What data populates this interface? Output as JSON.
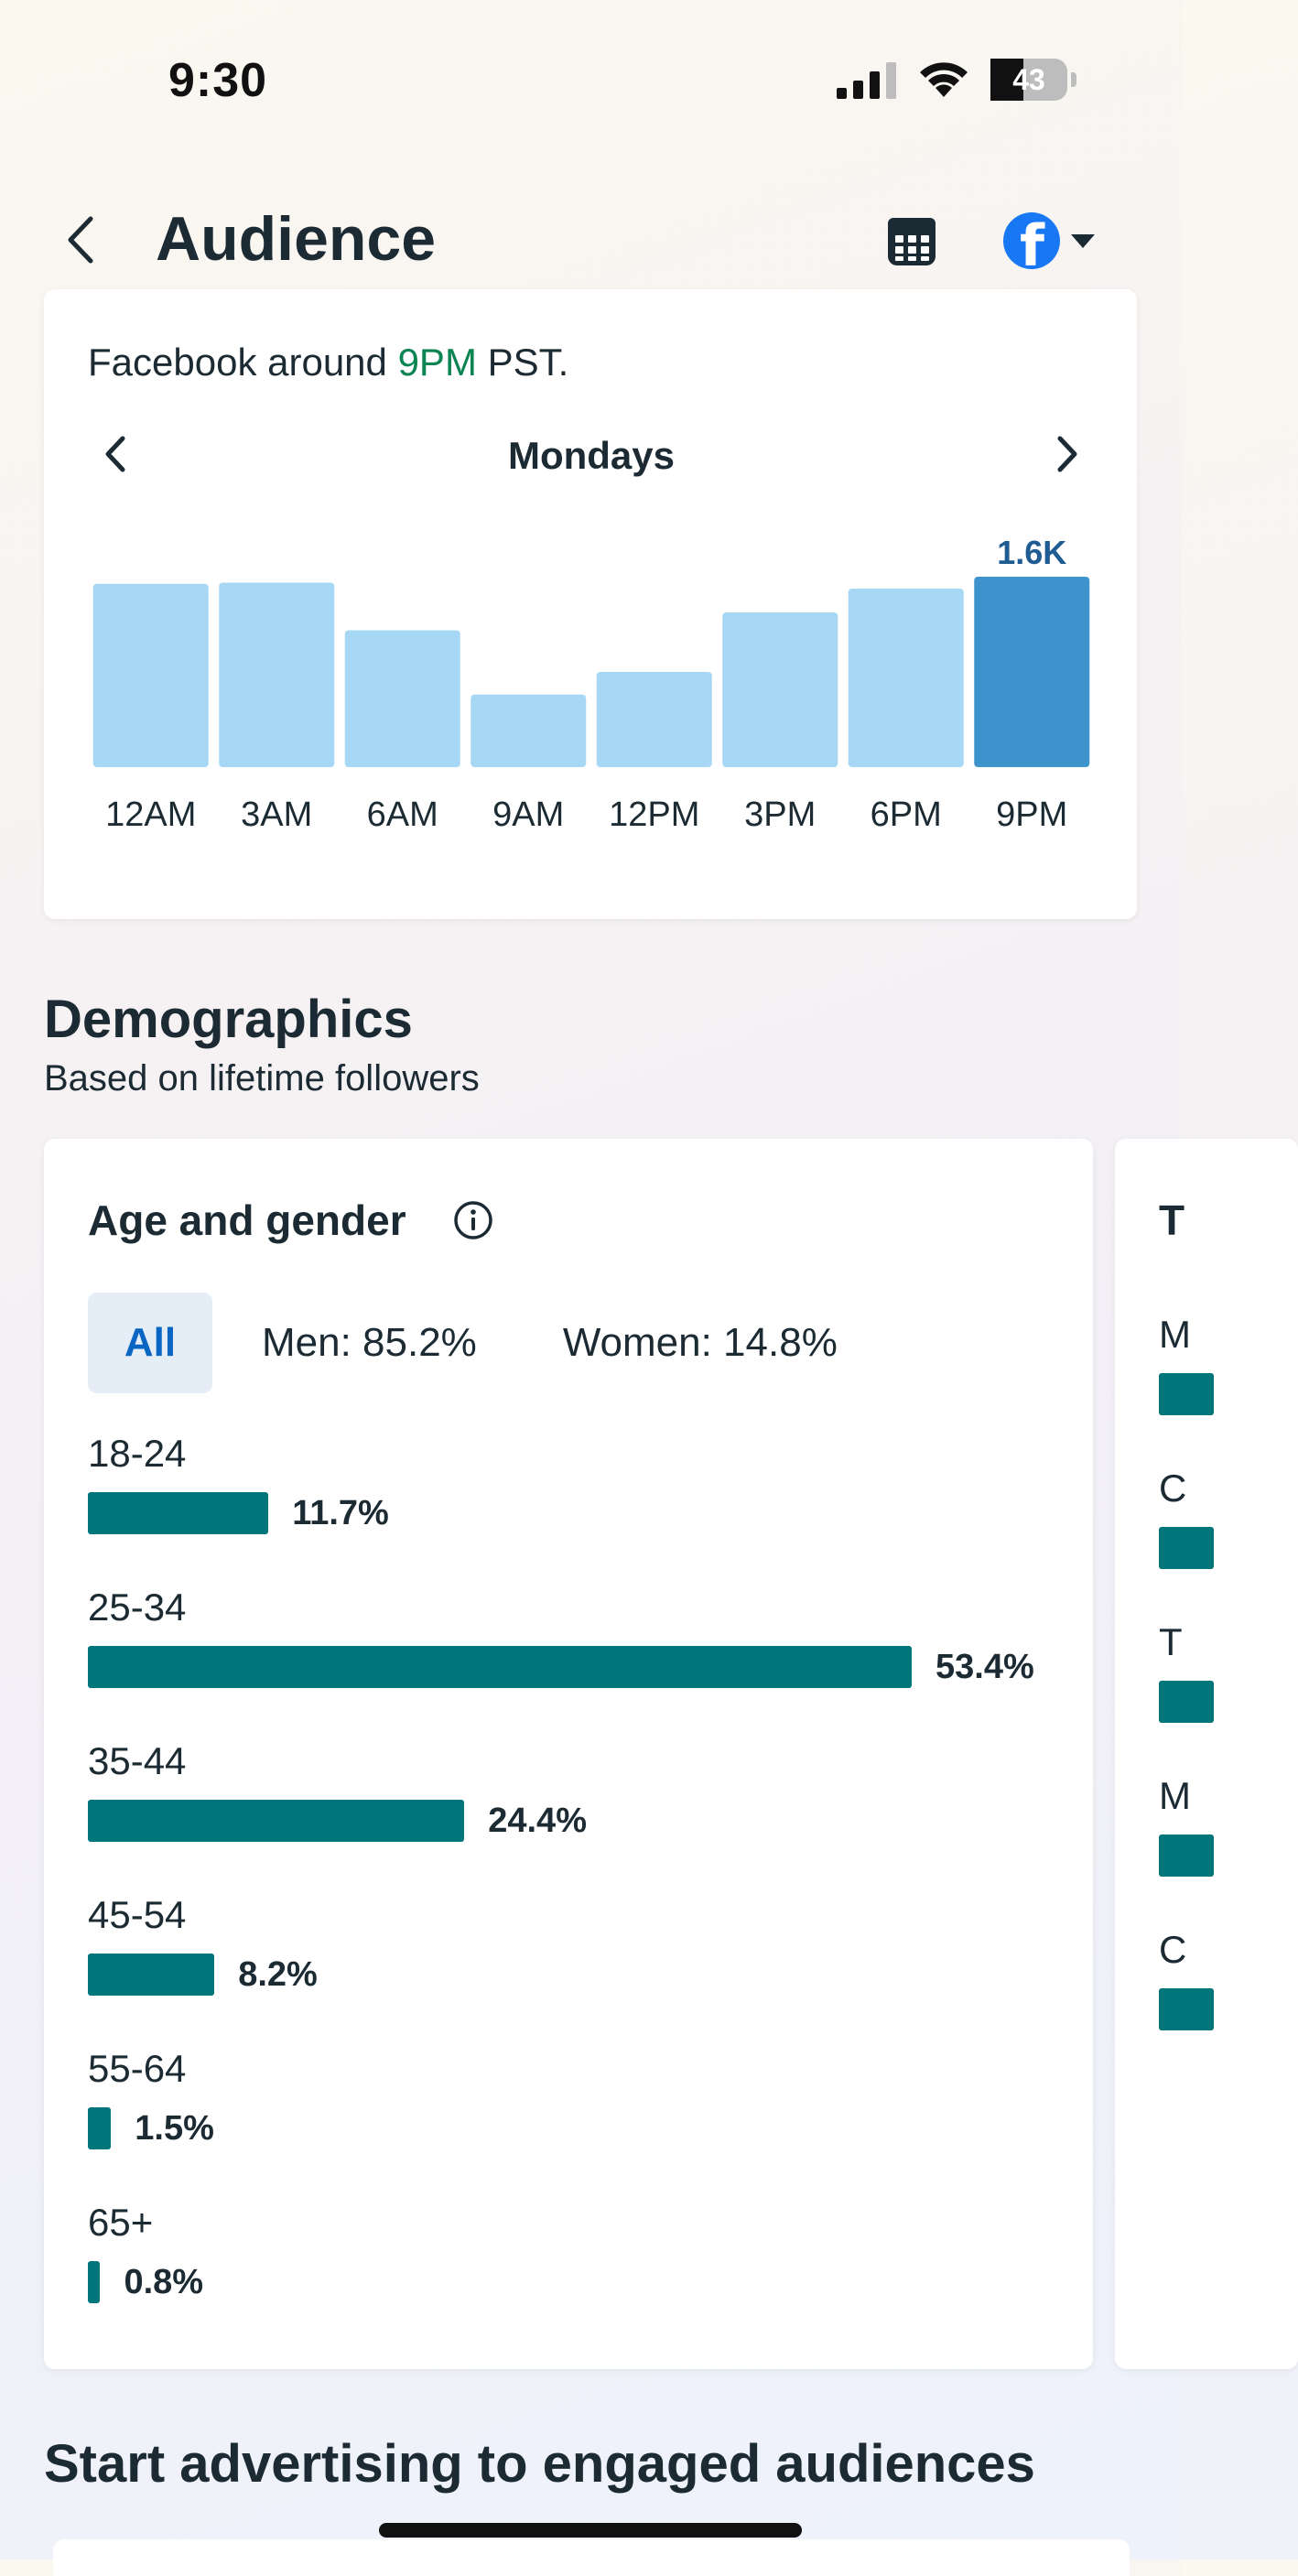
{
  "status_bar": {
    "time": "9:30",
    "battery": "43",
    "battery_level": 0.43
  },
  "header": {
    "title": "Audience",
    "calendar_icon": "calendar-icon",
    "account_icon": "facebook-logo"
  },
  "activity": {
    "text_prefix": "Facebook around ",
    "text_highlight": "9PM",
    "text_suffix": " PST.",
    "day": "Mondays",
    "highlight_color": "#0a8450"
  },
  "chart_data": {
    "type": "bar",
    "categories": [
      "12AM",
      "3AM",
      "6AM",
      "9AM",
      "12PM",
      "3PM",
      "6PM",
      "9PM"
    ],
    "values": [
      1.54,
      1.55,
      1.15,
      0.61,
      0.8,
      1.3,
      1.5,
      1.6
    ],
    "unit": "K",
    "data_labels": [
      {
        "index": 7,
        "text": "1.6K"
      }
    ],
    "highlight_index": 7,
    "colors": {
      "bar": "#a6d8f5",
      "highlight": "#3d94cc",
      "label": "#1f5c93"
    },
    "ylim": [
      0,
      1.6
    ]
  },
  "demographics": {
    "title": "Demographics",
    "subtitle": "Based on lifetime followers",
    "age_gender": {
      "title": "Age and gender",
      "filters": {
        "all": "All",
        "men": "Men: 85.2%",
        "women": "Women: 14.8%"
      },
      "bar_color": "#00757a",
      "max_percent": 53.4,
      "rows": [
        {
          "label": "18-24",
          "value": 11.7,
          "value_label": "11.7%"
        },
        {
          "label": "25-34",
          "value": 53.4,
          "value_label": "53.4%"
        },
        {
          "label": "35-44",
          "value": 24.4,
          "value_label": "24.4%"
        },
        {
          "label": "45-54",
          "value": 8.2,
          "value_label": "8.2%"
        },
        {
          "label": "55-64",
          "value": 1.5,
          "value_label": "1.5%"
        },
        {
          "label": "65+",
          "value": 0.8,
          "value_label": "0.8%"
        }
      ]
    },
    "peek_card": {
      "title": "T",
      "letters": [
        "M",
        "C",
        "T",
        "M",
        "C"
      ]
    }
  },
  "advertising": {
    "title": "Start advertising to engaged audiences"
  }
}
